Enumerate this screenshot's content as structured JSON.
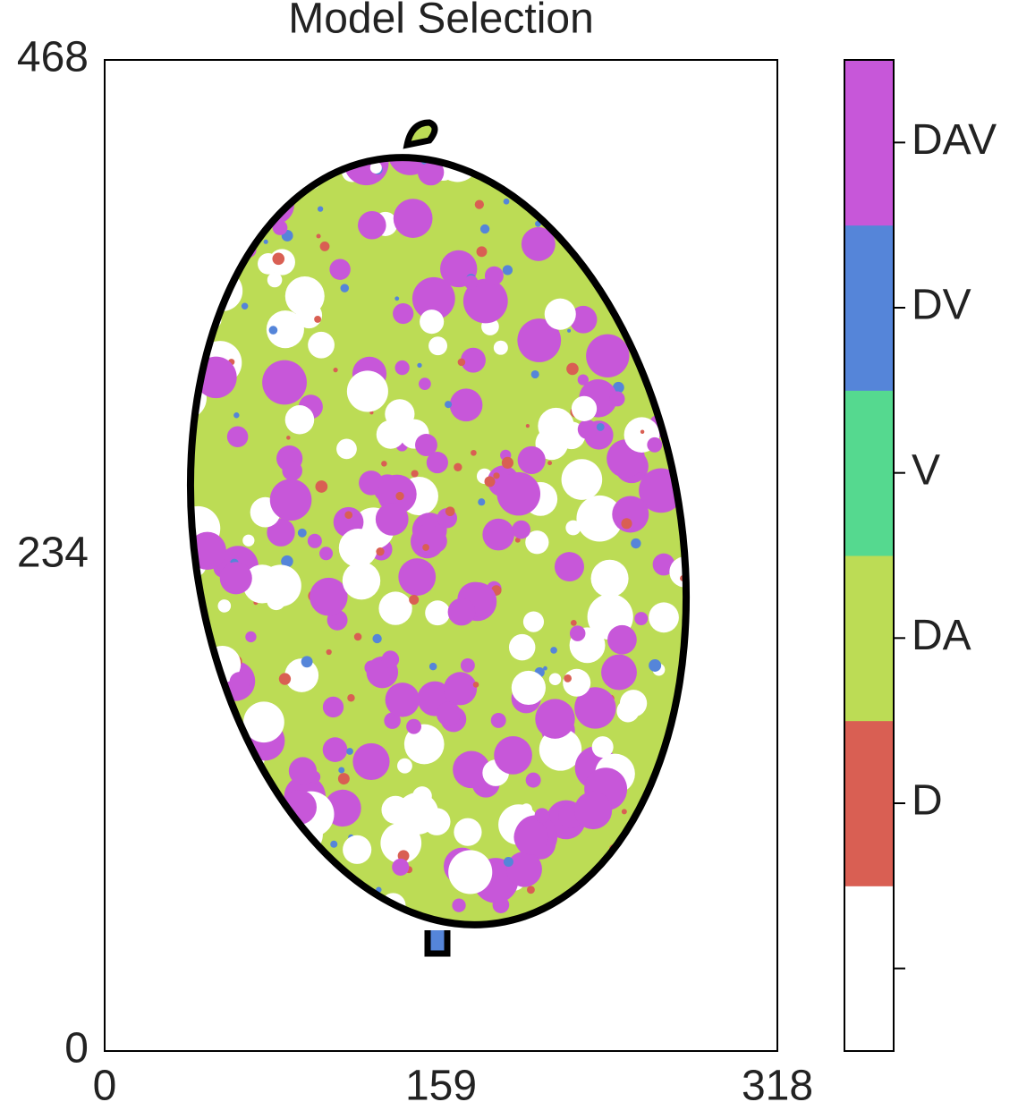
{
  "chart_data": {
    "type": "image",
    "title": "Model Selection",
    "xlim": [
      0,
      318
    ],
    "xticks": [
      0,
      159,
      318
    ],
    "ylim": [
      0,
      468
    ],
    "yticks": [
      0,
      234,
      468
    ],
    "colorbar": {
      "categories": [
        null,
        "D",
        "DA",
        "V",
        "DV",
        "DAV"
      ],
      "colors": [
        "#ffffff",
        "#d95f53",
        "#bcdc55",
        "#55d98f",
        "#5585d9",
        "#c757d9"
      ]
    }
  }
}
